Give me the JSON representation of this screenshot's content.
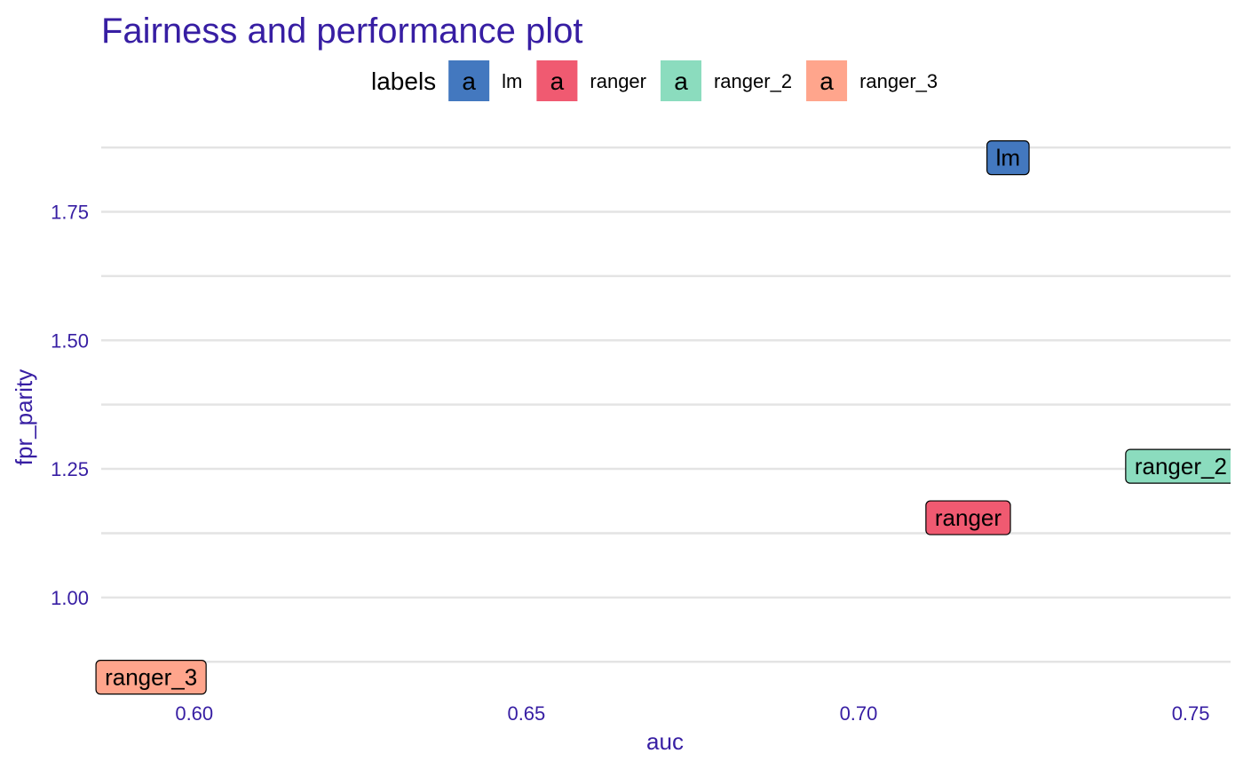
{
  "chart_data": {
    "type": "scatter",
    "title": "Fairness and performance plot",
    "xlabel": "auc",
    "ylabel": "fpr_parity",
    "xlim": [
      0.586,
      0.756
    ],
    "ylim": [
      0.815,
      1.92
    ],
    "x_ticks": [
      0.6,
      0.65,
      0.7,
      0.75
    ],
    "x_tick_labels": [
      "0.60",
      "0.65",
      "0.70",
      "0.75"
    ],
    "y_ticks": [
      1.0,
      1.25,
      1.5,
      1.75
    ],
    "y_tick_labels": [
      "1.00",
      "1.25",
      "1.50",
      "1.75"
    ],
    "y_minor_ticks": [
      0.875,
      1.125,
      1.375,
      1.625,
      1.875
    ],
    "grid": true,
    "legend_title": "labels",
    "legend_position": "top",
    "legend_key_glyph": "a",
    "points": [
      {
        "label": "lm",
        "x": 0.7225,
        "y": 1.855,
        "color": "#4378bf"
      },
      {
        "label": "ranger",
        "x": 0.7165,
        "y": 1.155,
        "color": "#f05a71"
      },
      {
        "label": "ranger_2",
        "x": 0.7485,
        "y": 1.255,
        "color": "#8bdcbe"
      },
      {
        "label": "ranger_3",
        "x": 0.5935,
        "y": 0.845,
        "color": "#ffa58c"
      }
    ]
  }
}
